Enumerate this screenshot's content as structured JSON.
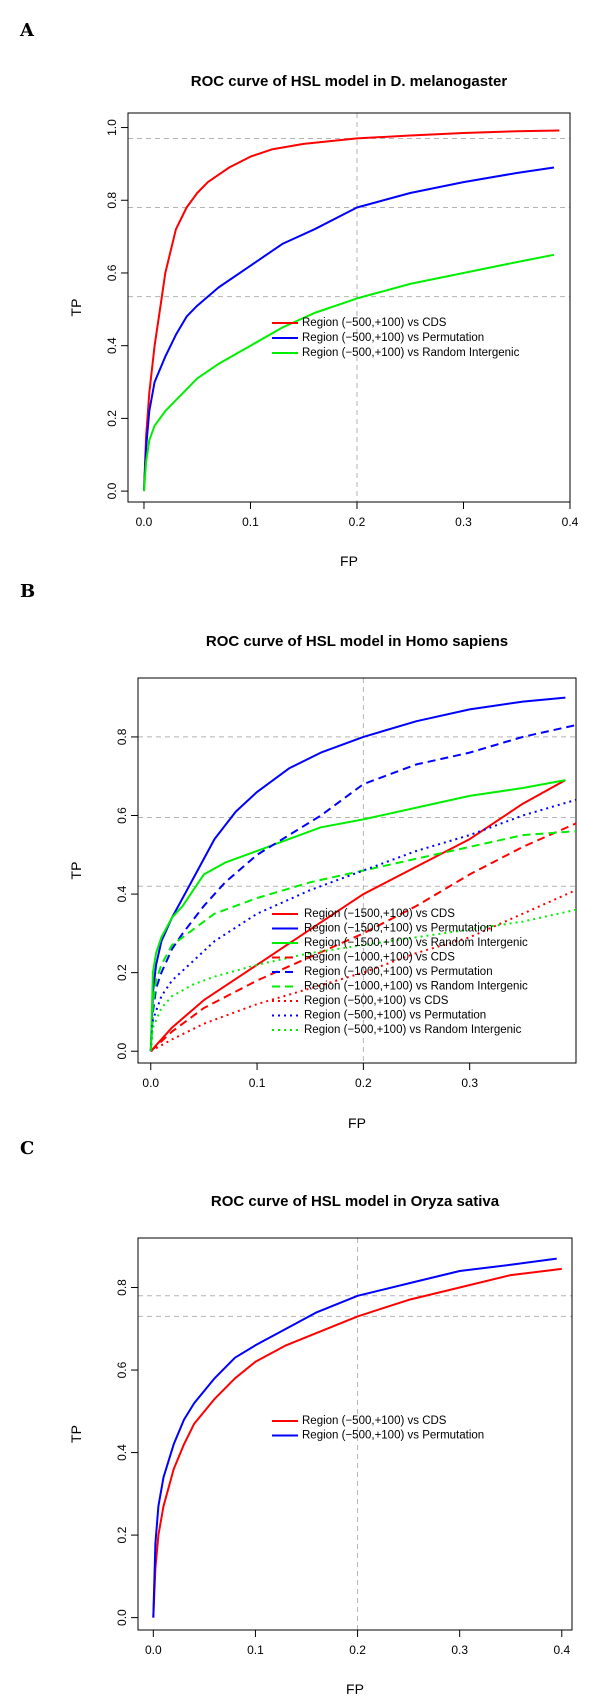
{
  "chart_data": [
    {
      "type": "line",
      "panel_label": "A",
      "title": "ROC curve of HSL model in D. melanogaster",
      "xlabel": "FP",
      "ylabel": "TP",
      "xlim": [
        -0.015,
        0.4
      ],
      "ylim": [
        -0.03,
        1.04
      ],
      "xticks": [
        0.0,
        0.1,
        0.2,
        0.3,
        0.4
      ],
      "xtick_labels": [
        "0.0",
        "0.1",
        "0.2",
        "0.3",
        "0.4"
      ],
      "yticks": [
        0.0,
        0.2,
        0.4,
        0.6,
        0.8,
        1.0
      ],
      "ytick_labels": [
        "0.0",
        "0.2",
        "0.4",
        "0.6",
        "0.8",
        "1.0"
      ],
      "reference_lines": {
        "vertical": [
          0.2
        ],
        "horizontal": [
          0.97,
          0.78,
          0.535
        ],
        "color": "#b4b4b4",
        "style": "dashed"
      },
      "legend_position": "center-right",
      "series": [
        {
          "name": "Region (−500,+100) vs CDS",
          "color": "#ff0000",
          "linestyle": "solid",
          "x": [
            0.0,
            0.002,
            0.005,
            0.01,
            0.015,
            0.02,
            0.025,
            0.03,
            0.04,
            0.05,
            0.06,
            0.07,
            0.08,
            0.1,
            0.12,
            0.15,
            0.2,
            0.25,
            0.3,
            0.35,
            0.39
          ],
          "y": [
            0.0,
            0.15,
            0.27,
            0.4,
            0.5,
            0.6,
            0.66,
            0.72,
            0.78,
            0.82,
            0.85,
            0.87,
            0.89,
            0.92,
            0.94,
            0.955,
            0.97,
            0.978,
            0.985,
            0.99,
            0.992
          ]
        },
        {
          "name": "Region (−500,+100) vs Permutation",
          "color": "#0000ff",
          "linestyle": "solid",
          "x": [
            0.0,
            0.002,
            0.005,
            0.01,
            0.02,
            0.03,
            0.04,
            0.05,
            0.07,
            0.1,
            0.13,
            0.16,
            0.2,
            0.25,
            0.3,
            0.35,
            0.385
          ],
          "y": [
            0.0,
            0.12,
            0.22,
            0.3,
            0.37,
            0.43,
            0.48,
            0.51,
            0.56,
            0.62,
            0.68,
            0.72,
            0.78,
            0.82,
            0.85,
            0.875,
            0.89
          ]
        },
        {
          "name": "Region (−500,+100) vs Random Intergenic",
          "color": "#00ee00",
          "linestyle": "solid",
          "x": [
            0.0,
            0.002,
            0.005,
            0.01,
            0.02,
            0.03,
            0.04,
            0.05,
            0.07,
            0.1,
            0.13,
            0.16,
            0.2,
            0.25,
            0.3,
            0.35,
            0.385
          ],
          "y": [
            0.0,
            0.08,
            0.14,
            0.18,
            0.22,
            0.25,
            0.28,
            0.31,
            0.35,
            0.4,
            0.45,
            0.49,
            0.53,
            0.57,
            0.6,
            0.63,
            0.65
          ]
        }
      ]
    },
    {
      "type": "line",
      "panel_label": "B",
      "title": "ROC curve of HSL model in Homo sapiens",
      "xlabel": "FP",
      "ylabel": "TP",
      "xlim": [
        -0.012,
        0.4
      ],
      "ylim": [
        -0.03,
        0.95
      ],
      "xticks": [
        0.0,
        0.1,
        0.2,
        0.3
      ],
      "xtick_labels": [
        "0.0",
        "0.1",
        "0.2",
        "0.3"
      ],
      "yticks": [
        0.0,
        0.2,
        0.4,
        0.6,
        0.8
      ],
      "ytick_labels": [
        "0.0",
        "0.2",
        "0.4",
        "0.6",
        "0.8"
      ],
      "reference_lines": {
        "vertical": [
          0.2
        ],
        "horizontal": [
          0.8,
          0.595,
          0.42
        ],
        "color": "#b4b4b4",
        "style": "dashed"
      },
      "legend_position": "bottom-center",
      "series": [
        {
          "name": "Region (−1500,+100) vs CDS",
          "color": "#ff0000",
          "linestyle": "solid",
          "x": [
            0.0,
            0.02,
            0.05,
            0.1,
            0.15,
            0.2,
            0.25,
            0.3,
            0.35,
            0.39
          ],
          "y": [
            0.0,
            0.06,
            0.13,
            0.22,
            0.31,
            0.4,
            0.47,
            0.54,
            0.63,
            0.69
          ]
        },
        {
          "name": "Region (−1500,+100) vs Permutation",
          "color": "#0000ff",
          "linestyle": "solid",
          "x": [
            0.0,
            0.002,
            0.005,
            0.01,
            0.02,
            0.03,
            0.04,
            0.06,
            0.08,
            0.1,
            0.13,
            0.16,
            0.2,
            0.25,
            0.3,
            0.35,
            0.39
          ],
          "y": [
            0.0,
            0.15,
            0.22,
            0.28,
            0.34,
            0.39,
            0.44,
            0.54,
            0.61,
            0.66,
            0.72,
            0.76,
            0.8,
            0.84,
            0.87,
            0.89,
            0.9
          ]
        },
        {
          "name": "Region (−1500,+100) vs Random Intergenic",
          "color": "#00ee00",
          "linestyle": "solid",
          "x": [
            0.0,
            0.002,
            0.005,
            0.01,
            0.02,
            0.03,
            0.04,
            0.05,
            0.07,
            0.1,
            0.13,
            0.16,
            0.2,
            0.25,
            0.3,
            0.35,
            0.39
          ],
          "y": [
            0.0,
            0.2,
            0.25,
            0.29,
            0.34,
            0.37,
            0.41,
            0.45,
            0.48,
            0.51,
            0.54,
            0.57,
            0.59,
            0.62,
            0.65,
            0.67,
            0.69
          ]
        },
        {
          "name": "Region (−1000,+100) vs CDS",
          "color": "#ff0000",
          "linestyle": "dashed",
          "x": [
            0.0,
            0.02,
            0.05,
            0.1,
            0.15,
            0.2,
            0.25,
            0.3,
            0.35,
            0.4
          ],
          "y": [
            0.0,
            0.05,
            0.11,
            0.18,
            0.24,
            0.3,
            0.37,
            0.45,
            0.52,
            0.58
          ]
        },
        {
          "name": "Region (−1000,+100) vs Permutation",
          "color": "#0000ff",
          "linestyle": "dashed",
          "x": [
            0.0,
            0.002,
            0.005,
            0.01,
            0.02,
            0.03,
            0.05,
            0.07,
            0.1,
            0.13,
            0.16,
            0.2,
            0.25,
            0.3,
            0.35,
            0.4
          ],
          "y": [
            0.0,
            0.1,
            0.16,
            0.2,
            0.26,
            0.3,
            0.37,
            0.43,
            0.5,
            0.55,
            0.6,
            0.68,
            0.73,
            0.76,
            0.8,
            0.83
          ]
        },
        {
          "name": "Region (−1000,+100) vs Random Intergenic",
          "color": "#00ee00",
          "linestyle": "dashed",
          "x": [
            0.0,
            0.002,
            0.005,
            0.01,
            0.02,
            0.04,
            0.06,
            0.1,
            0.15,
            0.2,
            0.25,
            0.3,
            0.35,
            0.4
          ],
          "y": [
            0.0,
            0.12,
            0.18,
            0.22,
            0.27,
            0.31,
            0.35,
            0.39,
            0.43,
            0.46,
            0.49,
            0.52,
            0.55,
            0.56
          ]
        },
        {
          "name": "Region (−500,+100) vs CDS",
          "color": "#ff0000",
          "linestyle": "dotted",
          "x": [
            0.0,
            0.02,
            0.05,
            0.1,
            0.15,
            0.2,
            0.25,
            0.3,
            0.35,
            0.4
          ],
          "y": [
            0.0,
            0.03,
            0.07,
            0.12,
            0.16,
            0.2,
            0.25,
            0.29,
            0.35,
            0.41
          ]
        },
        {
          "name": "Region (−500,+100) vs Permutation",
          "color": "#0000ff",
          "linestyle": "dotted",
          "x": [
            0.0,
            0.002,
            0.01,
            0.02,
            0.04,
            0.06,
            0.1,
            0.15,
            0.2,
            0.25,
            0.3,
            0.35,
            0.4
          ],
          "y": [
            0.0,
            0.08,
            0.14,
            0.18,
            0.23,
            0.28,
            0.35,
            0.41,
            0.46,
            0.51,
            0.55,
            0.6,
            0.64
          ]
        },
        {
          "name": "Region (−500,+100) vs Random Intergenic",
          "color": "#00ee00",
          "linestyle": "dotted",
          "x": [
            0.0,
            0.002,
            0.01,
            0.02,
            0.04,
            0.06,
            0.1,
            0.15,
            0.2,
            0.25,
            0.3,
            0.35,
            0.4
          ],
          "y": [
            0.0,
            0.06,
            0.11,
            0.14,
            0.17,
            0.19,
            0.22,
            0.25,
            0.27,
            0.29,
            0.31,
            0.33,
            0.36
          ]
        }
      ]
    },
    {
      "type": "line",
      "panel_label": "C",
      "title": "ROC curve of HSL model in Oryza sativa",
      "xlabel": "FP",
      "ylabel": "TP",
      "xlim": [
        -0.015,
        0.41
      ],
      "ylim": [
        -0.03,
        0.92
      ],
      "xticks": [
        0.0,
        0.1,
        0.2,
        0.3,
        0.4
      ],
      "xtick_labels": [
        "0.0",
        "0.1",
        "0.2",
        "0.3",
        "0.4"
      ],
      "yticks": [
        0.0,
        0.2,
        0.4,
        0.6,
        0.8
      ],
      "ytick_labels": [
        "0.0",
        "0.2",
        "0.4",
        "0.6",
        "0.8"
      ],
      "reference_lines": {
        "vertical": [
          0.2
        ],
        "horizontal": [
          0.78,
          0.73
        ],
        "color": "#b4b4b4",
        "style": "dashed"
      },
      "legend_position": "center-right",
      "series": [
        {
          "name": "Region (−500,+100) vs CDS",
          "color": "#ff0000",
          "linestyle": "solid",
          "x": [
            0.0,
            0.002,
            0.005,
            0.01,
            0.02,
            0.03,
            0.04,
            0.06,
            0.08,
            0.1,
            0.13,
            0.16,
            0.2,
            0.25,
            0.3,
            0.35,
            0.4
          ],
          "y": [
            0.0,
            0.12,
            0.2,
            0.27,
            0.36,
            0.42,
            0.47,
            0.53,
            0.58,
            0.62,
            0.66,
            0.69,
            0.73,
            0.77,
            0.8,
            0.83,
            0.845
          ]
        },
        {
          "name": "Region (−500,+100) vs Permutation",
          "color": "#0000ff",
          "linestyle": "solid",
          "x": [
            0.0,
            0.002,
            0.005,
            0.01,
            0.02,
            0.03,
            0.04,
            0.06,
            0.08,
            0.1,
            0.13,
            0.16,
            0.2,
            0.25,
            0.3,
            0.35,
            0.395
          ],
          "y": [
            0.0,
            0.18,
            0.27,
            0.34,
            0.42,
            0.48,
            0.52,
            0.58,
            0.63,
            0.66,
            0.7,
            0.74,
            0.78,
            0.81,
            0.84,
            0.855,
            0.87
          ]
        }
      ]
    }
  ]
}
